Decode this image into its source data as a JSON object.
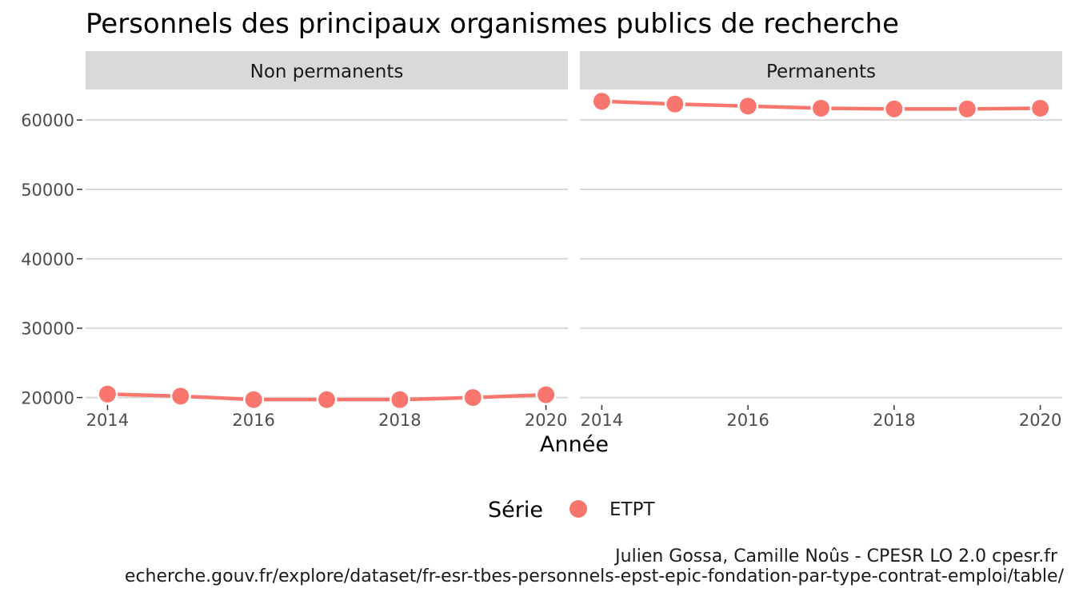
{
  "chart_data": {
    "type": "line",
    "title": "Personnels des principaux organismes publics de recherche",
    "xlabel": "Année",
    "ylabel": "",
    "x": [
      2014,
      2015,
      2016,
      2017,
      2018,
      2019,
      2020
    ],
    "xticks": [
      "2014",
      "2016",
      "2018",
      "2020"
    ],
    "yticks": [
      "20000",
      "30000",
      "40000",
      "50000",
      "60000"
    ],
    "ylim": [
      18800,
      64400
    ],
    "xlim": [
      2013.7,
      2020.3
    ],
    "grid": true,
    "legend": {
      "title": "Série",
      "position": "bottom",
      "entries": [
        "ETPT"
      ]
    },
    "series_color": "#F8766D",
    "panels": [
      {
        "label": "Non permanents",
        "series": [
          {
            "name": "ETPT",
            "values": [
              20500,
              20200,
              19700,
              19700,
              19700,
              20000,
              20400
            ]
          }
        ]
      },
      {
        "label": "Permanents",
        "series": [
          {
            "name": "ETPT",
            "values": [
              62700,
              62300,
              62000,
              61700,
              61600,
              61600,
              61700
            ]
          }
        ]
      }
    ]
  },
  "caption": {
    "line1": "Julien Gossa, Camille Noûs - CPESR LO 2.0 cpesr.fr",
    "line2": "echerche.gouv.fr/explore/dataset/fr-esr-tbes-personnels-epst-epic-fondation-par-type-contrat-emploi/table/"
  }
}
